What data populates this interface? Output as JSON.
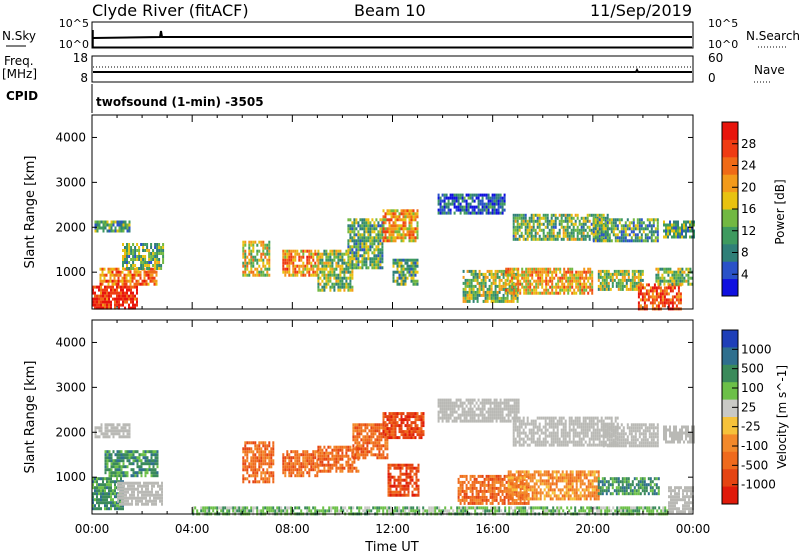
{
  "header": {
    "site": "Clyde River (fitACF)",
    "beam": "Beam 10",
    "date": "11/Sep/2019"
  },
  "top_panels": {
    "nsky": {
      "label": "N.Sky",
      "ticks": [
        "10^5",
        "10^0"
      ]
    },
    "nsearch": {
      "label": "N.Search",
      "ticks": [
        "10^5",
        "10^0"
      ]
    },
    "freq": {
      "label_line1": "Freq.",
      "label_line2": "[MHz]",
      "ticks": [
        "18",
        "8"
      ]
    },
    "nave": {
      "label": "Nave",
      "ticks": [
        "60",
        "0"
      ]
    },
    "cpid": {
      "label": "CPID",
      "program": "twofsound (1-min) -3505"
    }
  },
  "colors": {
    "power_scale": [
      "#1010e0",
      "#2a52c8",
      "#2f7f78",
      "#3e9a5f",
      "#72b842",
      "#e8c210",
      "#f39a1a",
      "#f06a16",
      "#ef3b12",
      "#e8140c"
    ],
    "velocity_scale": [
      "#1f3fb8",
      "#2f6f8e",
      "#3a8a5a",
      "#6cc048",
      "#c9c9c5",
      "#f6c23a",
      "#f3892a",
      "#ef6a1c",
      "#e54412",
      "#e01a0a"
    ],
    "ground_scatter": "#b9b9b5"
  },
  "chart_data": [
    {
      "type": "heatmap",
      "title": "",
      "xlabel": "",
      "ylabel": "Slant Range [km]",
      "xlim": [
        0,
        24
      ],
      "ylim": [
        180,
        4500
      ],
      "x_tick_labels": [
        "00:00",
        "04:00",
        "08:00",
        "12:00",
        "16:00",
        "20:00",
        "00:00"
      ],
      "x_tick_values": [
        0,
        4,
        8,
        12,
        16,
        20,
        24
      ],
      "y_tick_values": [
        1000,
        2000,
        3000,
        4000
      ],
      "colorbar": {
        "label": "Power [dB]",
        "range": [
          0,
          32
        ],
        "tick_values": [
          4,
          8,
          12,
          16,
          20,
          24,
          28
        ]
      },
      "regions": [
        {
          "t0": 0.0,
          "t1": 1.8,
          "r0": 200,
          "r1": 700,
          "value": 29
        },
        {
          "t0": 0.3,
          "t1": 2.6,
          "r0": 700,
          "r1": 1100,
          "value": 23
        },
        {
          "t0": 1.2,
          "t1": 2.8,
          "r0": 1050,
          "r1": 1650,
          "value": 13
        },
        {
          "t0": 0.1,
          "t1": 1.5,
          "r0": 1900,
          "r1": 2150,
          "value": 11
        },
        {
          "t0": 6.0,
          "t1": 7.1,
          "r0": 900,
          "r1": 1700,
          "value": 17
        },
        {
          "t0": 7.6,
          "t1": 9.0,
          "r0": 900,
          "r1": 1500,
          "value": 22
        },
        {
          "t0": 9.0,
          "t1": 10.4,
          "r0": 600,
          "r1": 1500,
          "value": 14
        },
        {
          "t0": 10.2,
          "t1": 11.6,
          "r0": 1100,
          "r1": 2200,
          "value": 12
        },
        {
          "t0": 11.6,
          "t1": 13.0,
          "r0": 1700,
          "r1": 2400,
          "value": 21
        },
        {
          "t0": 12.0,
          "t1": 13.0,
          "r0": 700,
          "r1": 1300,
          "value": 12
        },
        {
          "t0": 13.8,
          "t1": 16.5,
          "r0": 2300,
          "r1": 2750,
          "value": 6
        },
        {
          "t0": 14.8,
          "t1": 17.0,
          "r0": 350,
          "r1": 1050,
          "value": 15
        },
        {
          "t0": 16.5,
          "t1": 20.0,
          "r0": 500,
          "r1": 1100,
          "value": 20
        },
        {
          "t0": 16.8,
          "t1": 20.6,
          "r0": 1700,
          "r1": 2300,
          "value": 13
        },
        {
          "t0": 20.0,
          "t1": 22.6,
          "r0": 1700,
          "r1": 2200,
          "value": 11
        },
        {
          "t0": 20.2,
          "t1": 22.0,
          "r0": 600,
          "r1": 1050,
          "value": 15
        },
        {
          "t0": 21.8,
          "t1": 23.5,
          "r0": 200,
          "r1": 750,
          "value": 27
        },
        {
          "t0": 22.5,
          "t1": 24.0,
          "r0": 700,
          "r1": 1100,
          "value": 14
        },
        {
          "t0": 22.8,
          "t1": 24.0,
          "r0": 1800,
          "r1": 2150,
          "value": 12
        }
      ]
    },
    {
      "type": "heatmap",
      "title": "",
      "xlabel": "Time UT",
      "ylabel": "Slant Range [km]",
      "xlim": [
        0,
        24
      ],
      "ylim": [
        180,
        4500
      ],
      "x_tick_labels": [
        "00:00",
        "04:00",
        "08:00",
        "12:00",
        "16:00",
        "20:00",
        "00:00"
      ],
      "x_tick_values": [
        0,
        4,
        8,
        12,
        16,
        20,
        24
      ],
      "y_tick_values": [
        1000,
        2000,
        3000,
        4000
      ],
      "colorbar": {
        "label": "Velocity [m s^-1]",
        "tick_labels": [
          "1000",
          "500",
          "100",
          "25",
          "-25",
          "-100",
          "-500",
          "-1000"
        ]
      },
      "regions": [
        {
          "t0": 0.1,
          "t1": 1.5,
          "r0": 1900,
          "r1": 2200,
          "class": "ground"
        },
        {
          "t0": 0.0,
          "t1": 1.2,
          "r0": 300,
          "r1": 1000,
          "class": 2
        },
        {
          "t0": 0.5,
          "t1": 2.6,
          "r0": 1000,
          "r1": 1600,
          "class": 2
        },
        {
          "t0": 1.0,
          "t1": 2.8,
          "r0": 400,
          "r1": 900,
          "class": "ground"
        },
        {
          "t0": 6.0,
          "t1": 7.2,
          "r0": 900,
          "r1": 1800,
          "class": 7
        },
        {
          "t0": 7.6,
          "t1": 9.0,
          "r0": 1000,
          "r1": 1600,
          "class": 7
        },
        {
          "t0": 9.0,
          "t1": 10.6,
          "r0": 1100,
          "r1": 1700,
          "class": 7
        },
        {
          "t0": 10.4,
          "t1": 11.8,
          "r0": 1400,
          "r1": 2200,
          "class": 7
        },
        {
          "t0": 11.6,
          "t1": 13.2,
          "r0": 1900,
          "r1": 2450,
          "class": 8
        },
        {
          "t0": 11.8,
          "t1": 13.0,
          "r0": 600,
          "r1": 1300,
          "class": 8
        },
        {
          "t0": 13.8,
          "t1": 17.0,
          "r0": 2250,
          "r1": 2750,
          "class": "ground"
        },
        {
          "t0": 14.6,
          "t1": 17.4,
          "r0": 400,
          "r1": 1050,
          "class": 7
        },
        {
          "t0": 16.6,
          "t1": 20.2,
          "r0": 500,
          "r1": 1150,
          "class": 6
        },
        {
          "t0": 16.8,
          "t1": 21.0,
          "r0": 1700,
          "r1": 2350,
          "class": "ground"
        },
        {
          "t0": 20.4,
          "t1": 22.6,
          "r0": 1700,
          "r1": 2200,
          "class": "ground"
        },
        {
          "t0": 20.2,
          "t1": 22.6,
          "r0": 600,
          "r1": 1000,
          "class": 2
        },
        {
          "t0": 22.8,
          "t1": 24.0,
          "r0": 1800,
          "r1": 2150,
          "class": "ground"
        },
        {
          "t0": 23.0,
          "t1": 24.0,
          "r0": 200,
          "r1": 800,
          "class": "ground"
        },
        {
          "t0": 4.0,
          "t1": 23.0,
          "r0": 180,
          "r1": 350,
          "class": 3
        }
      ]
    }
  ]
}
